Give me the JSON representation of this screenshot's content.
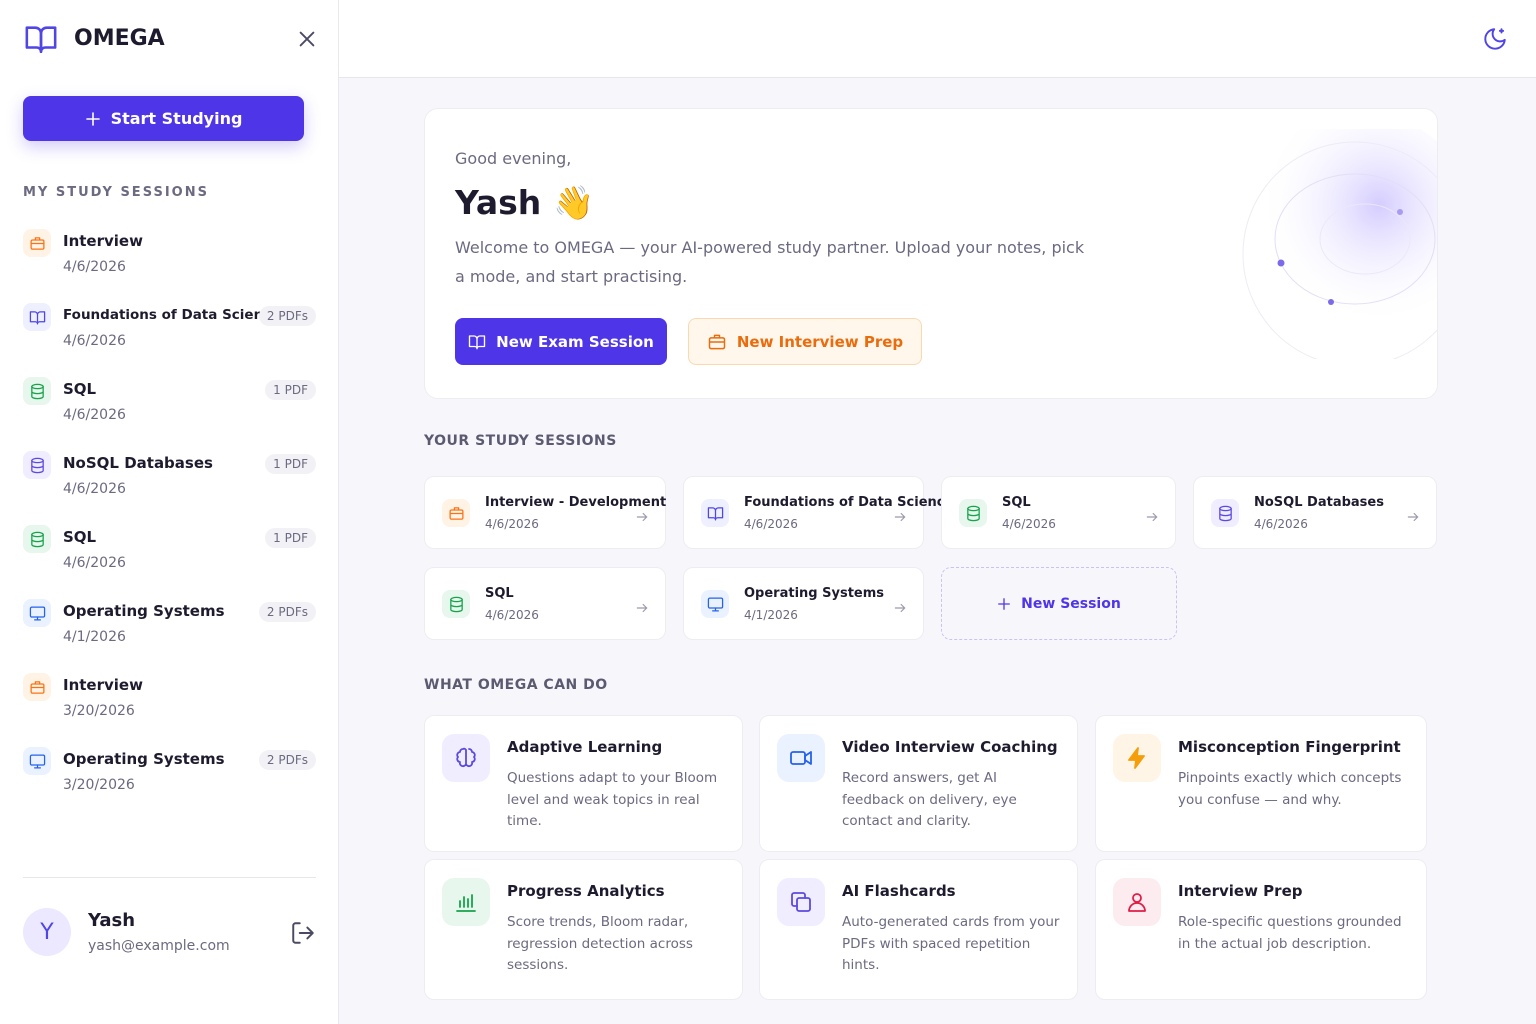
{
  "sidebar": {
    "brand": "OMEGA",
    "start_button": "Start Studying",
    "section_title": "MY STUDY SESSIONS",
    "sessions": [
      {
        "title": "Interview",
        "date": "4/6/2026"
      },
      {
        "title": "Foundations of Data Science",
        "date": "4/6/2026",
        "badge": "2 PDFs"
      },
      {
        "title": "SQL",
        "date": "4/6/2026",
        "badge": "1 PDF"
      },
      {
        "title": "NoSQL Databases",
        "date": "4/6/2026",
        "badge": "1 PDF"
      },
      {
        "title": "SQL",
        "date": "4/6/2026",
        "badge": "1 PDF"
      },
      {
        "title": "Operating Systems",
        "date": "4/1/2026",
        "badge": "2 PDFs"
      },
      {
        "title": "Interview",
        "date": "3/20/2026"
      },
      {
        "title": "Operating Systems",
        "date": "3/20/2026",
        "badge": "2 PDFs"
      }
    ],
    "user": {
      "avatar": "Y",
      "name": "Yash",
      "email": "yash@example.com"
    }
  },
  "hero": {
    "greeting": "Good evening,",
    "name": "Yash",
    "emoji": "👋",
    "welcome": "Welcome to OMEGA — your AI-powered study partner. Upload your notes, pick a mode, and start practising.",
    "primary_button": "New Exam Session",
    "secondary_button": "New Interview Prep"
  },
  "sessions_section": {
    "title": "YOUR STUDY SESSIONS",
    "cards": [
      {
        "title": "Interview - Development",
        "date": "4/6/2026"
      },
      {
        "title": "Foundations of Data Science",
        "date": "4/6/2026"
      },
      {
        "title": "SQL",
        "date": "4/6/2026"
      },
      {
        "title": "NoSQL Databases",
        "date": "4/6/2026"
      },
      {
        "title": "SQL",
        "date": "4/6/2026"
      },
      {
        "title": "Operating Systems",
        "date": "4/1/2026"
      }
    ],
    "new_session": "New Session"
  },
  "features_section": {
    "title": "WHAT OMEGA CAN DO",
    "cards": [
      {
        "title": "Adaptive Learning",
        "description": "Questions adapt to your Bloom level and weak topics in real time."
      },
      {
        "title": "Video Interview Coaching",
        "description": "Record answers, get AI feedback on delivery, eye contact and clarity."
      },
      {
        "title": "Misconception Fingerprint",
        "description": "Pinpoints exactly which concepts you confuse — and why."
      },
      {
        "title": "Progress Analytics",
        "description": "Score trends, Bloom radar, regression detection across sessions."
      },
      {
        "title": "AI Flashcards",
        "description": "Auto-generated cards from your PDFs with spaced repetition hints."
      },
      {
        "title": "Interview Prep",
        "description": "Role-specific questions grounded in the actual job description."
      }
    ]
  }
}
